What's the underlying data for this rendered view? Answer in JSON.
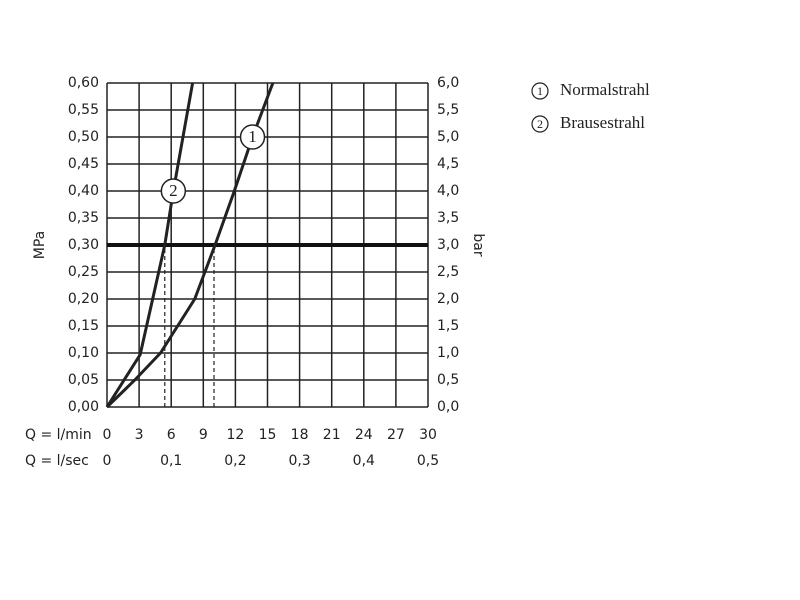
{
  "chart_data": {
    "type": "line",
    "ylabel": "MPa",
    "y2label": "bar",
    "xlabel": "Q = l/min",
    "x2label": "Q = l/sec",
    "xlim": [
      0,
      30
    ],
    "xticks": [
      0,
      3,
      6,
      9,
      12,
      15,
      18,
      21,
      24,
      27,
      30
    ],
    "x2lim": [
      0,
      0.5
    ],
    "x2ticks": [
      0,
      {
        "value": 0.1,
        "label": "0,1"
      },
      {
        "value": 0.2,
        "label": "0,2"
      },
      {
        "value": 0.3,
        "label": "0,3"
      },
      {
        "value": 0.4,
        "label": "0,4"
      },
      {
        "value": 0.5,
        "label": "0,5"
      }
    ],
    "ylim": [
      0,
      0.6
    ],
    "yticks": [
      {
        "value": 0,
        "label": "0,00"
      },
      {
        "value": 0.05,
        "label": "0,05"
      },
      {
        "value": 0.1,
        "label": "0,10"
      },
      {
        "value": 0.15,
        "label": "0,15"
      },
      {
        "value": 0.2,
        "label": "0,20"
      },
      {
        "value": 0.25,
        "label": "0,25"
      },
      {
        "value": 0.3,
        "label": "0,30"
      },
      {
        "value": 0.35,
        "label": "0,35"
      },
      {
        "value": 0.4,
        "label": "0,40"
      },
      {
        "value": 0.45,
        "label": "0,45"
      },
      {
        "value": 0.5,
        "label": "0,50"
      },
      {
        "value": 0.55,
        "label": "0,55"
      },
      {
        "value": 0.6,
        "label": "0,60"
      }
    ],
    "y2lim": [
      0,
      6
    ],
    "y2ticks": [
      {
        "value": 0,
        "label": "0,0"
      },
      {
        "value": 0.5,
        "label": "0,5"
      },
      {
        "value": 1,
        "label": "1,0"
      },
      {
        "value": 1.5,
        "label": "1,5"
      },
      {
        "value": 2,
        "label": "2,0"
      },
      {
        "value": 2.5,
        "label": "2,5"
      },
      {
        "value": 3,
        "label": "3,0"
      },
      {
        "value": 3.5,
        "label": "3,5"
      },
      {
        "value": 4,
        "label": "4,0"
      },
      {
        "value": 4.5,
        "label": "4,5"
      },
      {
        "value": 5,
        "label": "5,0"
      },
      {
        "value": 5.5,
        "label": "5,5"
      },
      {
        "value": 6,
        "label": "6,0"
      }
    ],
    "grid": true,
    "threshold": 0.3,
    "dashed_x": [
      5.4,
      10
    ],
    "series": [
      {
        "name": "Normalstrahl",
        "label": "1",
        "color": "#222222",
        "x": [
          0,
          2.6,
          5.0,
          8.2,
          10.1,
          11.9,
          13.6,
          15.5
        ],
        "values": [
          0,
          0.05,
          0.1,
          0.2,
          0.3,
          0.4,
          0.5,
          0.6
        ]
      },
      {
        "name": "Brausestrahl",
        "label": "2",
        "color": "#222222",
        "x": [
          0,
          3.1,
          5.4,
          6.2,
          8.0
        ],
        "values": [
          0,
          0.097,
          0.3,
          0.4,
          0.6
        ]
      }
    ]
  }
}
